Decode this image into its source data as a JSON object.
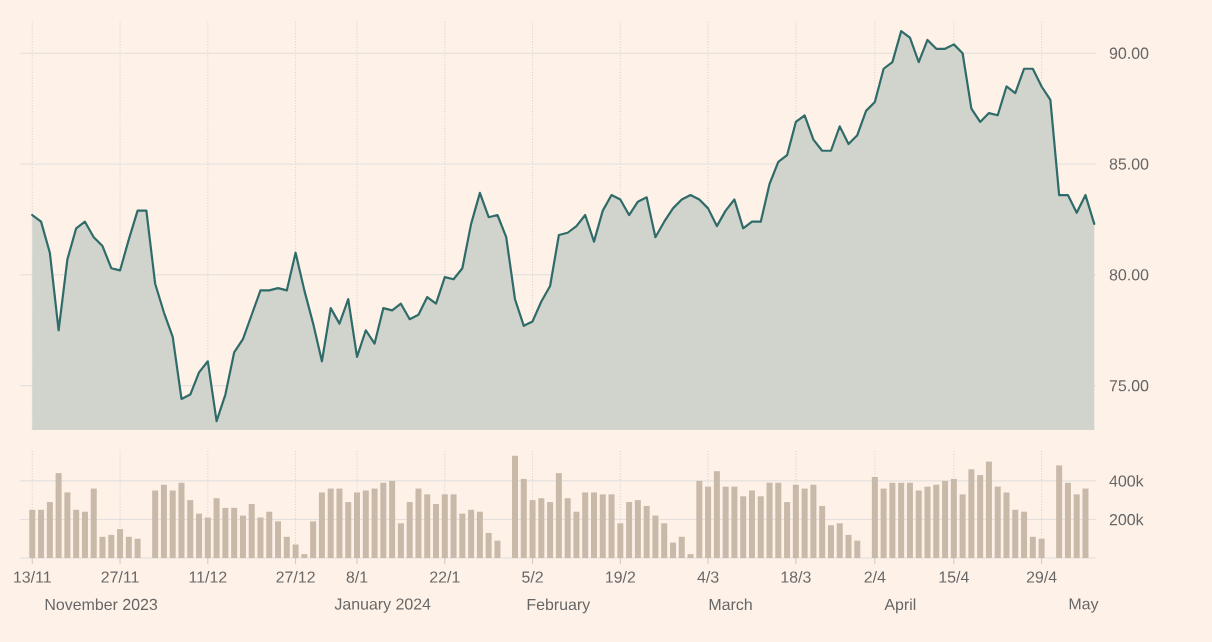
{
  "chart_data": [
    {
      "type": "area",
      "color": "#2f6b68",
      "categories": [
        null,
        null,
        null,
        null,
        null,
        null,
        null,
        null,
        null,
        null,
        null,
        null,
        null,
        null,
        null,
        null,
        null,
        null,
        null,
        null,
        null,
        null,
        null,
        null,
        null,
        null,
        null,
        null,
        null,
        null,
        null,
        null,
        null,
        null,
        null,
        null,
        null,
        null,
        null,
        null,
        null,
        null,
        null,
        null,
        null,
        null,
        null,
        null,
        null,
        null,
        null,
        null,
        null,
        null,
        null,
        null,
        null,
        null,
        null,
        null,
        null,
        null,
        null,
        null,
        null,
        null,
        null,
        null,
        null,
        null,
        null,
        null,
        null,
        null,
        null,
        null,
        null,
        null,
        null,
        null,
        null,
        null,
        null,
        null,
        null,
        null,
        null,
        null,
        null,
        null,
        null,
        null,
        null,
        null,
        null,
        null,
        null,
        null,
        null,
        null,
        null,
        null,
        null,
        null,
        null,
        null,
        null,
        null,
        null,
        null,
        null,
        null,
        null,
        null,
        null,
        null,
        null,
        null,
        null,
        null,
        null,
        null
      ],
      "values": [
        82.7,
        82.4,
        81.0,
        77.5,
        80.7,
        82.1,
        82.4,
        81.7,
        81.3,
        80.3,
        80.2,
        81.6,
        82.9,
        82.9,
        79.6,
        78.3,
        77.2,
        74.4,
        74.6,
        75.6,
        76.1,
        73.4,
        74.6,
        76.5,
        77.1,
        78.2,
        79.3,
        79.3,
        79.4,
        79.3,
        81.0,
        79.3,
        77.8,
        76.1,
        78.5,
        77.8,
        78.9,
        76.3,
        77.5,
        76.9,
        78.5,
        78.4,
        78.7,
        78.0,
        78.2,
        79.0,
        78.7,
        79.9,
        79.8,
        80.3,
        82.3,
        83.7,
        82.6,
        82.7,
        81.7,
        78.9,
        77.7,
        77.9,
        78.8,
        79.5,
        81.8,
        81.9,
        82.2,
        82.7,
        81.5,
        82.9,
        83.6,
        83.4,
        82.7,
        83.3,
        83.5,
        81.7,
        82.4,
        83.0,
        83.4,
        83.6,
        83.4,
        83.0,
        82.2,
        82.9,
        83.4,
        82.1,
        82.4,
        82.4,
        84.1,
        85.1,
        85.4,
        86.9,
        87.2,
        86.1,
        85.6,
        85.6,
        86.7,
        85.9,
        86.3,
        87.4,
        87.8,
        89.3,
        89.6,
        91.0,
        90.7,
        89.6,
        90.6,
        90.2,
        90.2,
        90.4,
        90.0,
        87.5,
        86.9,
        87.3,
        87.2,
        88.5,
        88.2,
        89.3,
        89.3,
        88.5,
        87.9,
        83.6,
        83.6,
        82.8,
        83.6,
        82.3
      ],
      "ylim": [
        73,
        91.5
      ],
      "yticks": [
        {
          "value": 75,
          "label": "75.00"
        },
        {
          "value": 80,
          "label": "80.00"
        },
        {
          "value": 85,
          "label": "85.00"
        },
        {
          "value": 90,
          "label": "90.00"
        }
      ],
      "grid": true
    },
    {
      "type": "bar",
      "color": "#c9b9a9",
      "categories": [
        "13/11",
        null,
        null,
        null,
        null,
        null,
        null,
        null,
        null,
        null,
        "27/11",
        null,
        null,
        null,
        null,
        null,
        null,
        null,
        null,
        null,
        "11/12",
        null,
        null,
        null,
        null,
        null,
        null,
        null,
        null,
        null,
        "27/12",
        null,
        null,
        null,
        null,
        null,
        null,
        "8/1",
        null,
        null,
        null,
        null,
        null,
        null,
        null,
        null,
        null,
        "22/1",
        null,
        null,
        null,
        null,
        null,
        null,
        null,
        null,
        null,
        "5/2",
        null,
        null,
        null,
        null,
        null,
        null,
        null,
        null,
        null,
        "19/2",
        null,
        null,
        null,
        null,
        null,
        null,
        null,
        null,
        null,
        "4/3",
        null,
        null,
        null,
        null,
        null,
        null,
        null,
        null,
        null,
        "18/3",
        null,
        null,
        null,
        null,
        null,
        null,
        null,
        null,
        "2/4",
        null,
        null,
        null,
        null,
        null,
        null,
        null,
        null,
        "15/4",
        null,
        null,
        null,
        null,
        null,
        null,
        null,
        null,
        null,
        "29/4",
        null,
        null,
        null,
        null,
        null,
        null
      ],
      "values": [
        250,
        250,
        290,
        440,
        340,
        250,
        240,
        360,
        110,
        120,
        150,
        110,
        100,
        null,
        350,
        380,
        350,
        390,
        300,
        230,
        210,
        310,
        260,
        260,
        220,
        280,
        210,
        240,
        190,
        110,
        70,
        20,
        190,
        340,
        360,
        360,
        290,
        340,
        350,
        360,
        390,
        400,
        180,
        290,
        360,
        330,
        280,
        330,
        330,
        230,
        250,
        240,
        130,
        90,
        null,
        530,
        410,
        300,
        310,
        290,
        440,
        310,
        240,
        340,
        340,
        330,
        330,
        180,
        290,
        300,
        270,
        220,
        180,
        80,
        110,
        20,
        400,
        370,
        450,
        370,
        370,
        320,
        350,
        320,
        390,
        390,
        290,
        380,
        360,
        380,
        270,
        170,
        180,
        120,
        90,
        null,
        420,
        360,
        390,
        390,
        390,
        350,
        370,
        380,
        400,
        410,
        330,
        460,
        430,
        500,
        370,
        340,
        250,
        240,
        110,
        100,
        null,
        480,
        390,
        330,
        360,
        null
      ],
      "ylim": [
        0,
        560
      ],
      "yticks": [
        {
          "value": 0,
          "label": null
        },
        {
          "value": 200,
          "label": "200k"
        },
        {
          "value": 400,
          "label": "400k"
        }
      ],
      "grid": true,
      "annotations": [
        "November 2023",
        "January 2024",
        "February",
        "March",
        "April",
        "May"
      ]
    }
  ]
}
